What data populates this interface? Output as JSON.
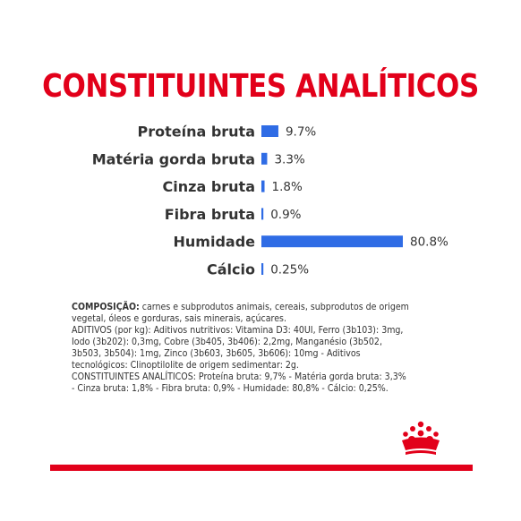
{
  "title": "CONSTITUINTES ANALÍTICOS",
  "chart_data": {
    "type": "bar",
    "orientation": "horizontal",
    "title": "CONSTITUINTES ANALÍTICOS",
    "categories": [
      "Proteína bruta",
      "Matéria gorda bruta",
      "Cinza bruta",
      "Fibra bruta",
      "Humidade",
      "Cálcio"
    ],
    "values": [
      9.7,
      3.3,
      1.8,
      0.9,
      80.8,
      0.25
    ],
    "value_labels": [
      "9.7%",
      "3.3%",
      "1.8%",
      "0.9%",
      "80.8%",
      "0.25%"
    ],
    "unit": "%",
    "xlim": [
      0,
      100
    ],
    "grid": false,
    "legend": "none",
    "bar_color": "#2f6ce5"
  },
  "composition": {
    "label": "COMPOSIÇÃO:",
    "text": " carnes e subprodutos animais, cereais, subprodutos de origem vegetal, óleos e gorduras, sais minerais, açúcares.",
    "additives": "ADITIVOS (por kg): Aditivos nutritivos: Vitamina D3: 40UI, Ferro (3b103): 3mg, Iodo (3b202): 0,3mg, Cobre (3b405, 3b406): 2,2mg, Manganésio (3b502, 3b503, 3b504): 1mg, Zinco (3b603, 3b605, 3b606): 10mg - Aditivos tecnológicos: Clinoptilolite de origem sedimentar: 2g.",
    "analytical": "CONSTITUINTES ANALÍTICOS: Proteína bruta: 9,7% - Matéria gorda bruta: 3,3% - Cinza bruta: 1,8% - Fibra bruta: 0,9% - Humidade: 80,8% - Cálcio: 0,25%."
  },
  "colors": {
    "brand_red": "#e2001a",
    "bar_blue": "#2f6ce5",
    "text": "#333333"
  },
  "logo_icon": "crown-icon"
}
